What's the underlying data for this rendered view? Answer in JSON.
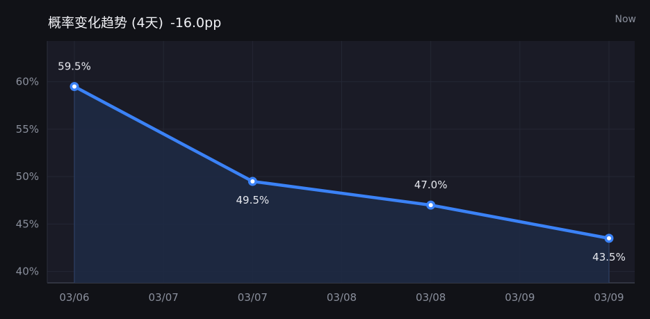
{
  "header": {
    "title": "概率变化趋势 (4天)",
    "delta": "-16.0pp",
    "now_label": "Now"
  },
  "colors": {
    "background": "#111217",
    "plot_background": "#1a1b26",
    "line": "#3b82f6",
    "fill": "#1e2a44",
    "grid": "#242734",
    "tick_text": "#8a8f9c",
    "label_text": "#e6e8ee"
  },
  "chart_data": {
    "type": "line",
    "title": "概率变化趋势 (4天)",
    "xlabel": "",
    "ylabel": "",
    "x_tick_labels": [
      "03/06",
      "03/07",
      "03/07",
      "03/08",
      "03/08",
      "03/09",
      "03/09"
    ],
    "y_tick_labels": [
      "40%",
      "45%",
      "50%",
      "55%",
      "60%"
    ],
    "y_ticks": [
      40,
      45,
      50,
      55,
      60
    ],
    "ylim": [
      38.8,
      64.3
    ],
    "grid": true,
    "area_fill": true,
    "series": [
      {
        "x": [
          "03/06",
          "03/07",
          "03/08",
          "03/09"
        ],
        "values": [
          59.5,
          49.5,
          47.0,
          43.5
        ],
        "labels": [
          "59.5%",
          "49.5%",
          "47.0%",
          "43.5%"
        ],
        "label_positions": [
          "above",
          "below",
          "above",
          "below"
        ]
      }
    ]
  }
}
